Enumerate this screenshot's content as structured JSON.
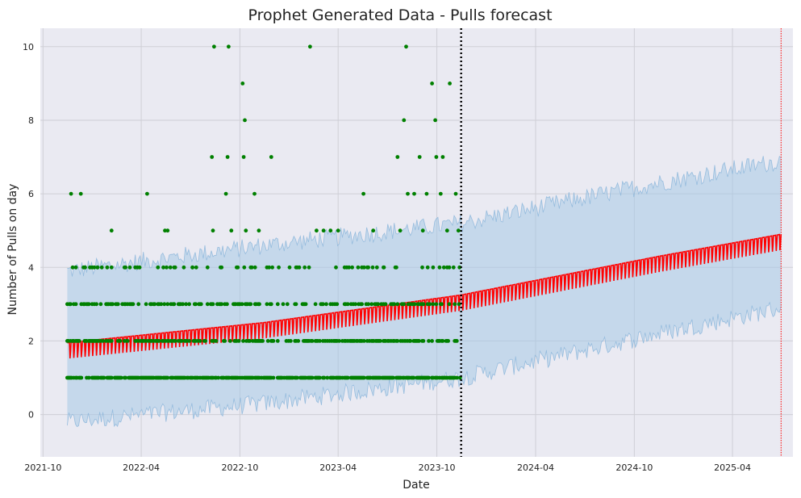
{
  "chart_data": {
    "type": "line",
    "title": "Prophet Generated Data - Pulls forecast",
    "xlabel": "Date",
    "ylabel": "Number of Pulls on day",
    "xlim": [
      "2021-09-26",
      "2025-07-22"
    ],
    "ylim": [
      -1.15,
      10.5
    ],
    "x_ticks": [
      "2021-10",
      "2022-04",
      "2022-10",
      "2023-04",
      "2023-10",
      "2024-04",
      "2024-10",
      "2025-04"
    ],
    "y_ticks": [
      0,
      2,
      4,
      6,
      8,
      10
    ],
    "grid": true,
    "data_start": "2021-11-15",
    "forecast_start": "2023-11-15",
    "data_end": "2025-06-30",
    "trend_series": {
      "name": "yhat",
      "color": "#ff0000",
      "x": [
        "2021-11-15",
        "2022-11-15",
        "2023-11-15",
        "2024-11-15",
        "2025-06-30"
      ],
      "values": [
        1.9,
        2.45,
        3.2,
        4.25,
        4.85
      ]
    },
    "uncertainty_band": {
      "color": "#a6c8e6",
      "x": [
        "2021-11-15",
        "2022-11-15",
        "2023-11-15",
        "2024-11-15",
        "2025-06-30"
      ],
      "upper": [
        3.9,
        4.6,
        5.2,
        6.3,
        6.9
      ],
      "lower": [
        -0.2,
        0.3,
        1.0,
        2.2,
        2.9
      ]
    },
    "observed_series": {
      "name": "y",
      "color": "#008000",
      "points": [
        {
          "x": "2021-11-22",
          "y": 6
        },
        {
          "x": "2021-12-10",
          "y": 6
        },
        {
          "x": "2021-11-25",
          "y": 4
        },
        {
          "x": "2021-12-18",
          "y": 4
        },
        {
          "x": "2022-01-10",
          "y": 4
        },
        {
          "x": "2022-02-05",
          "y": 5
        },
        {
          "x": "2022-03-25",
          "y": 4
        },
        {
          "x": "2022-04-12",
          "y": 6
        },
        {
          "x": "2022-05-15",
          "y": 5
        },
        {
          "x": "2022-05-20",
          "y": 5
        },
        {
          "x": "2022-05-25",
          "y": 4
        },
        {
          "x": "2022-07-05",
          "y": 4
        },
        {
          "x": "2022-07-12",
          "y": 4
        },
        {
          "x": "2022-08-10",
          "y": 7
        },
        {
          "x": "2022-08-14",
          "y": 10
        },
        {
          "x": "2022-08-12",
          "y": 5
        },
        {
          "x": "2022-09-10",
          "y": 10
        },
        {
          "x": "2022-09-05",
          "y": 6
        },
        {
          "x": "2022-09-08",
          "y": 7
        },
        {
          "x": "2022-09-15",
          "y": 5
        },
        {
          "x": "2022-10-06",
          "y": 9
        },
        {
          "x": "2022-10-10",
          "y": 8
        },
        {
          "x": "2022-10-08",
          "y": 7
        },
        {
          "x": "2022-10-12",
          "y": 5
        },
        {
          "x": "2022-10-28",
          "y": 6
        },
        {
          "x": "2022-11-05",
          "y": 5
        },
        {
          "x": "2022-11-28",
          "y": 7
        },
        {
          "x": "2023-01-15",
          "y": 4
        },
        {
          "x": "2023-02-08",
          "y": 10
        },
        {
          "x": "2023-02-20",
          "y": 5
        },
        {
          "x": "2023-03-05",
          "y": 5
        },
        {
          "x": "2023-03-18",
          "y": 5
        },
        {
          "x": "2023-03-28",
          "y": 4
        },
        {
          "x": "2023-04-01",
          "y": 5
        },
        {
          "x": "2023-05-08",
          "y": 4
        },
        {
          "x": "2023-05-18",
          "y": 6
        },
        {
          "x": "2023-06-05",
          "y": 5
        },
        {
          "x": "2023-06-25",
          "y": 4
        },
        {
          "x": "2023-07-20",
          "y": 7
        },
        {
          "x": "2023-07-25",
          "y": 5
        },
        {
          "x": "2023-08-01",
          "y": 8
        },
        {
          "x": "2023-08-05",
          "y": 10
        },
        {
          "x": "2023-08-08",
          "y": 6
        },
        {
          "x": "2023-08-20",
          "y": 6
        },
        {
          "x": "2023-08-30",
          "y": 7
        },
        {
          "x": "2023-09-05",
          "y": 5
        },
        {
          "x": "2023-09-12",
          "y": 6
        },
        {
          "x": "2023-09-22",
          "y": 9
        },
        {
          "x": "2023-09-28",
          "y": 8
        },
        {
          "x": "2023-09-30",
          "y": 7
        },
        {
          "x": "2023-10-08",
          "y": 6
        },
        {
          "x": "2023-10-12",
          "y": 7
        },
        {
          "x": "2023-10-20",
          "y": 5
        },
        {
          "x": "2023-10-25",
          "y": 9
        },
        {
          "x": "2023-11-05",
          "y": 6
        },
        {
          "x": "2023-11-10",
          "y": 5
        },
        {
          "x": "2023-11-12",
          "y": 4
        }
      ],
      "frequent_levels": [
        1,
        2,
        3,
        4
      ]
    },
    "reference_lines": [
      {
        "x": "2023-11-15",
        "style": "dotted",
        "color": "#000000"
      },
      {
        "x": "2025-06-30",
        "style": "dotted",
        "color": "#ff0000"
      }
    ],
    "style": {
      "background": "#eaeaf2",
      "grid_color": "#cfcfd6"
    }
  }
}
